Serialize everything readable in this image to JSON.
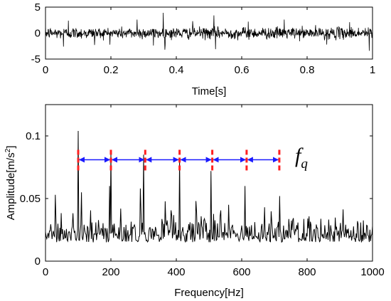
{
  "chart_data": [
    {
      "id": "time-signal",
      "type": "line",
      "title": "",
      "xlabel": "Time[s]",
      "ylabel": "",
      "xlim": [
        0,
        1
      ],
      "ylim": [
        -5,
        5
      ],
      "xticks": [
        "0",
        "0.2",
        "0.4",
        "0.6",
        "0.8",
        "1"
      ],
      "yticks": [
        "-5",
        "0",
        "5"
      ],
      "grid": false,
      "series": [
        {
          "color": "#000000",
          "n_samples": 1000,
          "base_amplitude": 1.0,
          "spikes": [
            {
              "x": 0.055,
              "y": -2.6
            },
            {
              "x": 0.07,
              "y": 2.4
            },
            {
              "x": 0.15,
              "y": -2.3
            },
            {
              "x": 0.28,
              "y": 2.6
            },
            {
              "x": 0.33,
              "y": -2.4
            },
            {
              "x": 0.36,
              "y": 3.9
            },
            {
              "x": 0.365,
              "y": -3.2
            },
            {
              "x": 0.45,
              "y": 2.3
            },
            {
              "x": 0.515,
              "y": 3.4
            },
            {
              "x": 0.52,
              "y": -3.1
            },
            {
              "x": 0.62,
              "y": 2.2
            },
            {
              "x": 0.73,
              "y": 2.6
            },
            {
              "x": 0.86,
              "y": -2.2
            },
            {
              "x": 0.93,
              "y": 2.1
            },
            {
              "x": 0.99,
              "y": -3.4
            }
          ]
        }
      ]
    },
    {
      "id": "spectrum",
      "type": "line",
      "title": "",
      "xlabel": "Frequency[Hz]",
      "ylabel": "Amplitude[m/s²]",
      "ylabel_main": "Amplitude[m/s",
      "ylabel_sup": "2",
      "ylabel_tail": "]",
      "xlim": [
        0,
        1000
      ],
      "ylim": [
        0,
        0.125
      ],
      "xticks": [
        "0",
        "200",
        "400",
        "600",
        "800",
        "1000"
      ],
      "yticks": [
        "0",
        "0.05",
        "0.1"
      ],
      "grid": false,
      "series": [
        {
          "color": "#000000",
          "n_samples": 500,
          "noise_floor": 0.015,
          "peaks": [
            {
              "x": 100,
              "y": 0.104
            },
            {
              "x": 200,
              "y": 0.087
            },
            {
              "x": 300,
              "y": 0.085
            },
            {
              "x": 410,
              "y": 0.082
            },
            {
              "x": 505,
              "y": 0.072
            },
            {
              "x": 610,
              "y": 0.06
            },
            {
              "x": 715,
              "y": 0.052
            },
            {
              "x": 110,
              "y": 0.055
            },
            {
              "x": 195,
              "y": 0.06
            },
            {
              "x": 290,
              "y": 0.058
            },
            {
              "x": 460,
              "y": 0.048
            },
            {
              "x": 560,
              "y": 0.045
            },
            {
              "x": 670,
              "y": 0.043
            },
            {
              "x": 30,
              "y": 0.053
            }
          ]
        }
      ],
      "annotation": {
        "label": "f",
        "subscript": "q",
        "arrow_color": "#1a1aff",
        "marker_color": "#ff2020",
        "y": 0.081,
        "markers_x": [
          100,
          200,
          305,
          410,
          510,
          615,
          715
        ]
      }
    }
  ]
}
